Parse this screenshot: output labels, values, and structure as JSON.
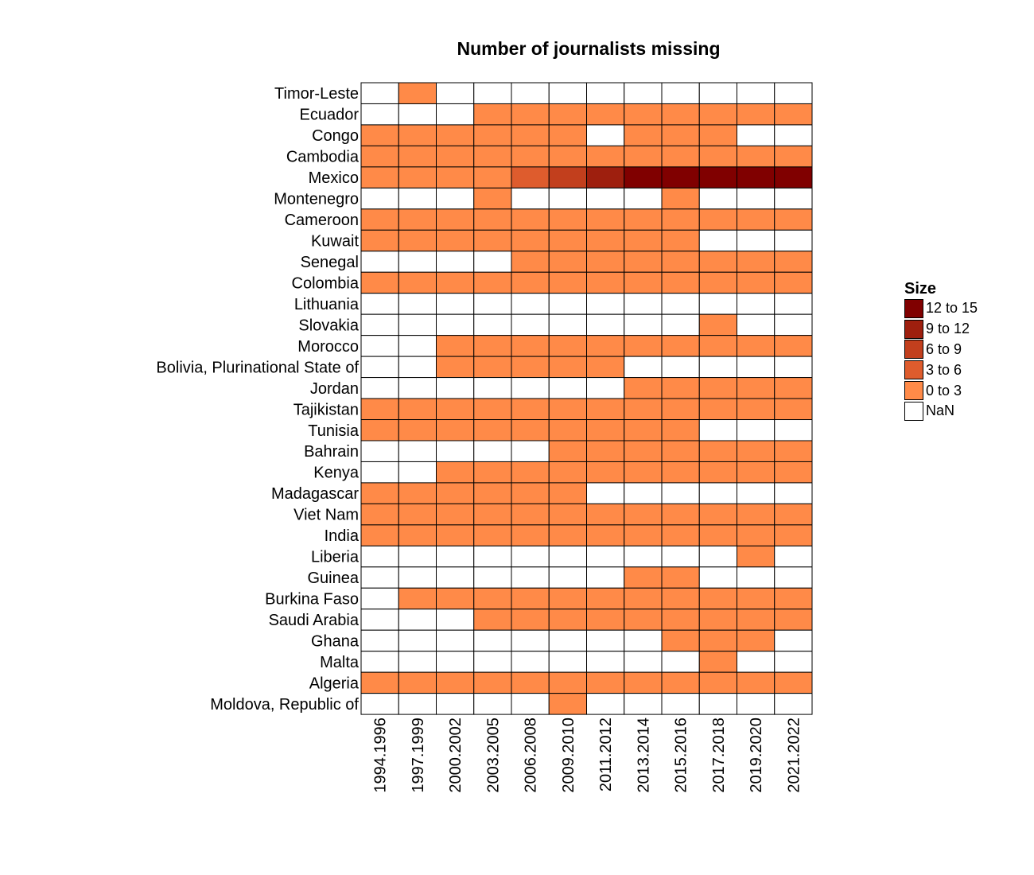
{
  "chart_data": {
    "type": "heatmap",
    "title": "Number of journalists missing",
    "x_categories": [
      "1994.1996",
      "1997.1999",
      "2000.2002",
      "2003.2005",
      "2006.2008",
      "2009.2010",
      "2011.2012",
      "2013.2014",
      "2015.2016",
      "2017.2018",
      "2019.2020",
      "2021.2022"
    ],
    "y_categories": [
      "Timor-Leste",
      "Ecuador",
      "Congo",
      "Cambodia",
      "Mexico",
      "Montenegro",
      "Cameroon",
      "Kuwait",
      "Senegal",
      "Colombia",
      "Lithuania",
      "Slovakia",
      "Morocco",
      "Bolivia, Plurinational State of",
      "Jordan",
      "Tajikistan",
      "Tunisia",
      "Bahrain",
      "Kenya",
      "Madagascar",
      "Viet Nam",
      "India",
      "Liberia",
      "Guinea",
      "Burkina Faso",
      "Saudi Arabia",
      "Ghana",
      "Malta",
      "Algeria",
      "Moldova, Republic of"
    ],
    "values": [
      [
        null,
        1,
        null,
        null,
        null,
        null,
        null,
        null,
        null,
        null,
        null,
        null
      ],
      [
        null,
        null,
        null,
        1,
        1,
        1,
        1,
        1,
        1,
        1,
        1,
        1
      ],
      [
        1,
        1,
        1,
        1,
        1,
        1,
        null,
        1,
        1,
        1,
        null,
        null
      ],
      [
        1,
        1,
        1,
        1,
        1,
        1,
        1,
        1,
        1,
        1,
        1,
        1
      ],
      [
        1,
        1,
        1,
        1,
        4,
        7,
        10,
        13,
        13,
        13,
        13,
        13
      ],
      [
        null,
        null,
        null,
        1,
        null,
        null,
        null,
        null,
        1,
        null,
        null,
        null
      ],
      [
        1,
        1,
        1,
        1,
        1,
        1,
        1,
        1,
        1,
        1,
        1,
        1
      ],
      [
        1,
        1,
        1,
        1,
        1,
        1,
        1,
        1,
        1,
        null,
        null,
        null
      ],
      [
        null,
        null,
        null,
        null,
        1,
        1,
        1,
        1,
        1,
        1,
        1,
        1
      ],
      [
        1,
        1,
        1,
        1,
        1,
        1,
        1,
        1,
        1,
        1,
        1,
        1
      ],
      [
        null,
        null,
        null,
        null,
        null,
        null,
        null,
        null,
        null,
        null,
        null,
        null
      ],
      [
        null,
        null,
        null,
        null,
        null,
        null,
        null,
        null,
        null,
        1,
        null,
        null
      ],
      [
        null,
        null,
        1,
        1,
        1,
        1,
        1,
        1,
        1,
        1,
        1,
        1
      ],
      [
        null,
        null,
        1,
        1,
        1,
        1,
        1,
        null,
        null,
        null,
        null,
        null
      ],
      [
        null,
        null,
        null,
        null,
        null,
        null,
        null,
        1,
        1,
        1,
        1,
        1
      ],
      [
        1,
        1,
        1,
        1,
        1,
        1,
        1,
        1,
        1,
        1,
        1,
        1
      ],
      [
        1,
        1,
        1,
        1,
        1,
        1,
        1,
        1,
        1,
        null,
        null,
        null
      ],
      [
        null,
        null,
        null,
        null,
        null,
        1,
        1,
        1,
        1,
        1,
        1,
        1
      ],
      [
        null,
        null,
        1,
        1,
        1,
        1,
        1,
        1,
        1,
        1,
        1,
        1
      ],
      [
        1,
        1,
        1,
        1,
        1,
        1,
        null,
        null,
        null,
        null,
        null,
        null
      ],
      [
        1,
        1,
        1,
        1,
        1,
        1,
        1,
        1,
        1,
        1,
        1,
        1
      ],
      [
        1,
        1,
        1,
        1,
        1,
        1,
        1,
        1,
        1,
        1,
        1,
        1
      ],
      [
        null,
        null,
        null,
        null,
        null,
        null,
        null,
        null,
        null,
        null,
        1,
        null
      ],
      [
        null,
        null,
        null,
        null,
        null,
        null,
        null,
        1,
        1,
        null,
        null,
        null
      ],
      [
        null,
        1,
        1,
        1,
        1,
        1,
        1,
        1,
        1,
        1,
        1,
        1
      ],
      [
        null,
        null,
        null,
        1,
        1,
        1,
        1,
        1,
        1,
        1,
        1,
        1
      ],
      [
        null,
        null,
        null,
        null,
        null,
        null,
        null,
        null,
        1,
        1,
        1,
        null
      ],
      [
        null,
        null,
        null,
        null,
        null,
        null,
        null,
        null,
        null,
        1,
        null,
        null
      ],
      [
        1,
        1,
        1,
        1,
        1,
        1,
        1,
        1,
        1,
        1,
        1,
        1
      ],
      [
        null,
        null,
        null,
        null,
        null,
        1,
        null,
        null,
        null,
        null,
        null,
        null
      ]
    ],
    "legend": {
      "title": "Size",
      "placement": "right",
      "bins": [
        {
          "label": "12 to 15",
          "min": 12,
          "max": 15,
          "color": "#800000"
        },
        {
          "label": "9 to 12",
          "min": 9,
          "max": 12,
          "color": "#9e1f0e"
        },
        {
          "label": "6 to 9",
          "min": 6,
          "max": 9,
          "color": "#c23f1d"
        },
        {
          "label": "3 to 6",
          "min": 3,
          "max": 6,
          "color": "#de5c2d"
        },
        {
          "label": "0 to 3",
          "min": 0,
          "max": 3,
          "color": "#ff8a48"
        },
        {
          "label": "NaN",
          "min": null,
          "max": null,
          "color": "#ffffff"
        }
      ]
    }
  }
}
